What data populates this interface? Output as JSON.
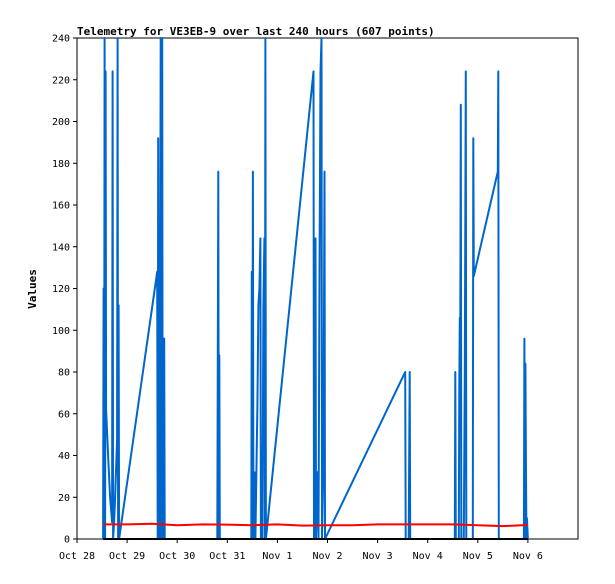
{
  "chart_data": {
    "type": "line",
    "title": "Telemetry for VE3EB-9 over last 240 hours (607 points)",
    "xlabel": "",
    "ylabel": "Values",
    "x_ticks": [
      "Oct 28",
      "Oct 29",
      "Oct 30",
      "Oct 31",
      "Nov 1",
      "Nov 2",
      "Nov 3",
      "Nov 4",
      "Nov 5",
      "Nov 6"
    ],
    "xlim_days": [
      0,
      10
    ],
    "ylim": [
      0,
      240
    ],
    "y_ticks": [
      0,
      20,
      40,
      60,
      80,
      100,
      120,
      140,
      160,
      180,
      200,
      220,
      240
    ],
    "grid": false,
    "legend": "none",
    "series": [
      {
        "color": "#0066cc",
        "points": [
          [
            0.52,
            0
          ],
          [
            0.53,
            120
          ],
          [
            0.54,
            0
          ],
          [
            0.55,
            240
          ],
          [
            0.56,
            0
          ],
          [
            0.57,
            224
          ],
          [
            0.58,
            62
          ],
          [
            0.62,
            40
          ],
          [
            0.66,
            20
          ],
          [
            0.7,
            8
          ],
          [
            0.71,
            224
          ],
          [
            0.72,
            0
          ],
          [
            0.74,
            8
          ],
          [
            0.76,
            20
          ],
          [
            0.8,
            48
          ],
          [
            0.81,
            240
          ],
          [
            0.82,
            0
          ],
          [
            0.83,
            112
          ],
          [
            0.84,
            0
          ],
          [
            1.6,
            128
          ],
          [
            1.61,
            0
          ],
          [
            1.62,
            192
          ],
          [
            1.63,
            0
          ],
          [
            1.64,
            128
          ],
          [
            1.65,
            0
          ],
          [
            1.67,
            240
          ],
          [
            1.68,
            0
          ],
          [
            1.69,
            232
          ],
          [
            1.7,
            240
          ],
          [
            1.71,
            0
          ],
          [
            1.74,
            96
          ],
          [
            1.75,
            0
          ],
          [
            2.8,
            0
          ],
          [
            2.82,
            176
          ],
          [
            2.83,
            0
          ],
          [
            2.84,
            88
          ],
          [
            2.85,
            0
          ],
          [
            3.48,
            0
          ],
          [
            3.49,
            128
          ],
          [
            3.5,
            0
          ],
          [
            3.51,
            176
          ],
          [
            3.52,
            0
          ],
          [
            3.54,
            32
          ],
          [
            3.56,
            0
          ],
          [
            3.6,
            64
          ],
          [
            3.62,
            112
          ],
          [
            3.64,
            120
          ],
          [
            3.66,
            144
          ],
          [
            3.67,
            0
          ],
          [
            3.68,
            40
          ],
          [
            3.7,
            0
          ],
          [
            3.72,
            112
          ],
          [
            3.74,
            144
          ],
          [
            3.75,
            0
          ],
          [
            3.76,
            240
          ],
          [
            3.77,
            0
          ],
          [
            4.72,
            224
          ],
          [
            4.73,
            0
          ],
          [
            4.76,
            144
          ],
          [
            4.77,
            0
          ],
          [
            4.8,
            32
          ],
          [
            4.82,
            0
          ],
          [
            4.84,
            128
          ],
          [
            4.86,
            224
          ],
          [
            4.88,
            240
          ],
          [
            4.89,
            0
          ],
          [
            4.92,
            40
          ],
          [
            4.94,
            176
          ],
          [
            4.95,
            0
          ],
          [
            6.55,
            80
          ],
          [
            6.56,
            0
          ],
          [
            6.62,
            0
          ],
          [
            6.64,
            80
          ],
          [
            6.65,
            0
          ],
          [
            7.54,
            0
          ],
          [
            7.55,
            80
          ],
          [
            7.56,
            0
          ],
          [
            7.62,
            0
          ],
          [
            7.63,
            72
          ],
          [
            7.64,
            106
          ],
          [
            7.65,
            104
          ],
          [
            7.66,
            208
          ],
          [
            7.67,
            0
          ],
          [
            7.72,
            0
          ],
          [
            7.74,
            80
          ],
          [
            7.76,
            224
          ],
          [
            7.77,
            0
          ],
          [
            7.9,
            0
          ],
          [
            7.91,
            192
          ],
          [
            7.92,
            126
          ],
          [
            8.4,
            176
          ],
          [
            8.41,
            224
          ],
          [
            8.42,
            0
          ],
          [
            8.92,
            0
          ],
          [
            8.93,
            96
          ],
          [
            8.94,
            0
          ],
          [
            8.95,
            84
          ],
          [
            8.96,
            40
          ],
          [
            8.97,
            0
          ],
          [
            8.98,
            10
          ],
          [
            9.0,
            0
          ]
        ]
      },
      {
        "color": "#ff0000",
        "points": [
          [
            0.52,
            7
          ],
          [
            1.0,
            7
          ],
          [
            1.5,
            7.3
          ],
          [
            2.0,
            6.6
          ],
          [
            2.5,
            7
          ],
          [
            3.0,
            6.9
          ],
          [
            3.5,
            6.6
          ],
          [
            4.0,
            7
          ],
          [
            4.5,
            6.4
          ],
          [
            5.0,
            6.6
          ],
          [
            5.5,
            6.6
          ],
          [
            6.0,
            7
          ],
          [
            6.5,
            7
          ],
          [
            7.0,
            7
          ],
          [
            7.5,
            7
          ],
          [
            8.0,
            6.6
          ],
          [
            8.5,
            6.2
          ],
          [
            9.0,
            6.7
          ]
        ]
      },
      {
        "color": "#000000",
        "points": [
          [
            0.52,
            0
          ],
          [
            9.0,
            0
          ]
        ]
      }
    ]
  }
}
